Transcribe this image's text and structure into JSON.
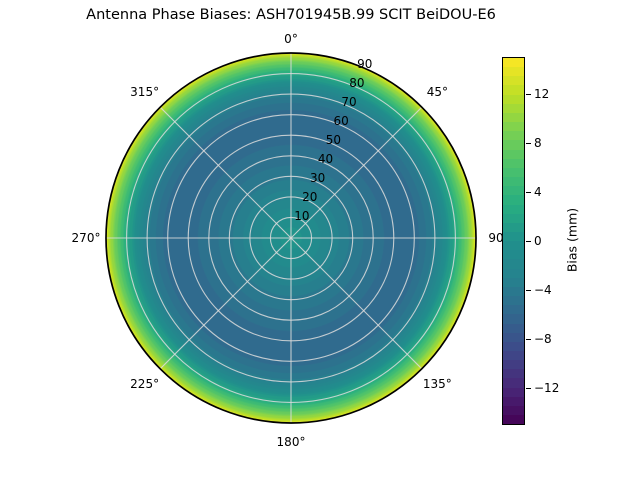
{
  "title": "Antenna Phase Biases: ASH701945B.99   SCIT BeiDOU-E6",
  "chart_data": {
    "type": "heatmap",
    "subtype": "polar",
    "title": "Antenna Phase Biases: ASH701945B.99   SCIT BeiDOU-E6",
    "theta_ticks": [
      {
        "label": "0°",
        "deg": 0
      },
      {
        "label": "45°",
        "deg": 45
      },
      {
        "label": "90",
        "deg": 90
      },
      {
        "label": "135°",
        "deg": 135
      },
      {
        "label": "180°",
        "deg": 180
      },
      {
        "label": "225°",
        "deg": 225
      },
      {
        "label": "270°",
        "deg": 270
      },
      {
        "label": "315°",
        "deg": 315
      }
    ],
    "r_ticks": {
      "values": [
        10,
        20,
        30,
        40,
        50,
        60,
        70,
        80,
        90
      ],
      "label_angle_deg": 22.5
    },
    "r_max": 90,
    "grid": {
      "visible": true,
      "color": "#dcdcdc"
    },
    "outline_color": "#000000",
    "colorbar": {
      "label": "Bias (mm)",
      "ticks": [
        -12,
        -8,
        -4,
        0,
        4,
        8,
        12
      ],
      "vmin": -15,
      "vmax": 15,
      "colormap": "viridis",
      "n_bands": 40
    },
    "viridis_stops": [
      [
        0.0,
        "#440154"
      ],
      [
        0.1,
        "#482878"
      ],
      [
        0.2,
        "#3e4989"
      ],
      [
        0.3,
        "#31688e"
      ],
      [
        0.4,
        "#26828e"
      ],
      [
        0.5,
        "#20908c"
      ],
      [
        0.6,
        "#28ae80"
      ],
      [
        0.7,
        "#4ac16d"
      ],
      [
        0.8,
        "#7ad151"
      ],
      [
        0.9,
        "#bddf26"
      ],
      [
        1.0,
        "#fde725"
      ]
    ],
    "radial_profile": {
      "description": "Bias (mm) vs elevation-style radius; pattern is approximately rotationally symmetric",
      "r": [
        0,
        10,
        20,
        30,
        40,
        50,
        57,
        63,
        70,
        75,
        80,
        83,
        86,
        88,
        90
      ],
      "bias_mm": [
        0.8,
        -0.8,
        -2.5,
        -4.0,
        -5.0,
        -5.5,
        -5.6,
        -5.2,
        -3.5,
        -1.0,
        2.5,
        5.5,
        8.5,
        11.0,
        13.5
      ]
    }
  }
}
